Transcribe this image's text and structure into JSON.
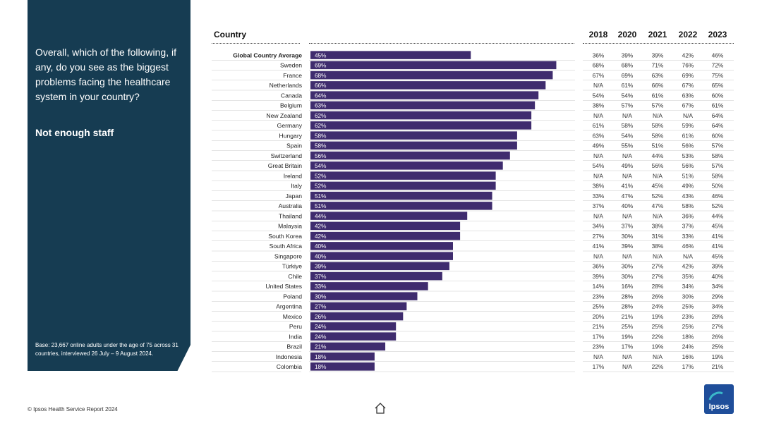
{
  "sidebar": {
    "question": "Overall, which of the following, if any, do you see as the biggest problems facing the healthcare system in your country?",
    "subtitle": "Not enough staff",
    "base_note": "Base: 23,667 online adults under the age of 75 across 31 countries, interviewed 26 July – 9 August 2024."
  },
  "header": {
    "country_label": "Country"
  },
  "footer": {
    "copyright": "© Ipsos Health Service Report 2024"
  },
  "logo": {
    "text": "Ipsos"
  },
  "colors": {
    "sidebar": "#163c52",
    "bar": "#3f2c6e",
    "logo": "#1f4e9a"
  },
  "chart_data": {
    "type": "bar",
    "orientation": "horizontal",
    "title": "Not enough staff",
    "xlim": [
      0,
      100
    ],
    "years": [
      "2018",
      "2020",
      "2021",
      "2022",
      "2023"
    ],
    "categories": [
      "Global Country Average",
      "Sweden",
      "France",
      "Netherlands",
      "Canada",
      "Belgium",
      "New Zealand",
      "Germany",
      "Hungary",
      "Spain",
      "Switzerland",
      "Great Britain",
      "Ireland",
      "Italy",
      "Japan",
      "Australia",
      "Thailand",
      "Malaysia",
      "South Korea",
      "South Africa",
      "Singapore",
      "Türkiye",
      "Chile",
      "United States",
      "Poland",
      "Argentina",
      "Mexico",
      "Peru",
      "India",
      "Brazil",
      "Indonesia",
      "Colombia"
    ],
    "values": [
      45,
      69,
      68,
      66,
      64,
      63,
      62,
      62,
      58,
      58,
      56,
      54,
      52,
      52,
      51,
      51,
      44,
      42,
      42,
      40,
      40,
      39,
      37,
      33,
      30,
      27,
      26,
      24,
      24,
      21,
      18,
      18
    ],
    "history": [
      [
        "36%",
        "39%",
        "39%",
        "42%",
        "46%"
      ],
      [
        "68%",
        "68%",
        "71%",
        "76%",
        "72%"
      ],
      [
        "67%",
        "69%",
        "63%",
        "69%",
        "75%"
      ],
      [
        "N/A",
        "61%",
        "66%",
        "67%",
        "65%"
      ],
      [
        "54%",
        "54%",
        "61%",
        "63%",
        "60%"
      ],
      [
        "38%",
        "57%",
        "57%",
        "67%",
        "61%"
      ],
      [
        "N/A",
        "N/A",
        "N/A",
        "N/A",
        "64%"
      ],
      [
        "61%",
        "58%",
        "58%",
        "59%",
        "64%"
      ],
      [
        "63%",
        "54%",
        "58%",
        "61%",
        "60%"
      ],
      [
        "49%",
        "55%",
        "51%",
        "56%",
        "57%"
      ],
      [
        "N/A",
        "N/A",
        "44%",
        "53%",
        "58%"
      ],
      [
        "54%",
        "49%",
        "56%",
        "56%",
        "57%"
      ],
      [
        "N/A",
        "N/A",
        "N/A",
        "51%",
        "58%"
      ],
      [
        "38%",
        "41%",
        "45%",
        "49%",
        "50%"
      ],
      [
        "33%",
        "47%",
        "52%",
        "43%",
        "46%"
      ],
      [
        "37%",
        "40%",
        "47%",
        "58%",
        "52%"
      ],
      [
        "N/A",
        "N/A",
        "N/A",
        "36%",
        "44%"
      ],
      [
        "34%",
        "37%",
        "38%",
        "37%",
        "45%"
      ],
      [
        "27%",
        "30%",
        "31%",
        "33%",
        "41%"
      ],
      [
        "41%",
        "39%",
        "38%",
        "46%",
        "41%"
      ],
      [
        "N/A",
        "N/A",
        "N/A",
        "N/A",
        "45%"
      ],
      [
        "36%",
        "30%",
        "27%",
        "42%",
        "39%"
      ],
      [
        "39%",
        "30%",
        "27%",
        "35%",
        "40%"
      ],
      [
        "14%",
        "16%",
        "28%",
        "34%",
        "34%"
      ],
      [
        "23%",
        "28%",
        "26%",
        "30%",
        "29%"
      ],
      [
        "25%",
        "28%",
        "24%",
        "25%",
        "34%"
      ],
      [
        "20%",
        "21%",
        "19%",
        "23%",
        "28%"
      ],
      [
        "21%",
        "25%",
        "25%",
        "25%",
        "27%"
      ],
      [
        "17%",
        "19%",
        "22%",
        "18%",
        "26%"
      ],
      [
        "23%",
        "17%",
        "19%",
        "24%",
        "25%"
      ],
      [
        "N/A",
        "N/A",
        "N/A",
        "16%",
        "19%"
      ],
      [
        "17%",
        "N/A",
        "22%",
        "17%",
        "21%"
      ]
    ]
  }
}
